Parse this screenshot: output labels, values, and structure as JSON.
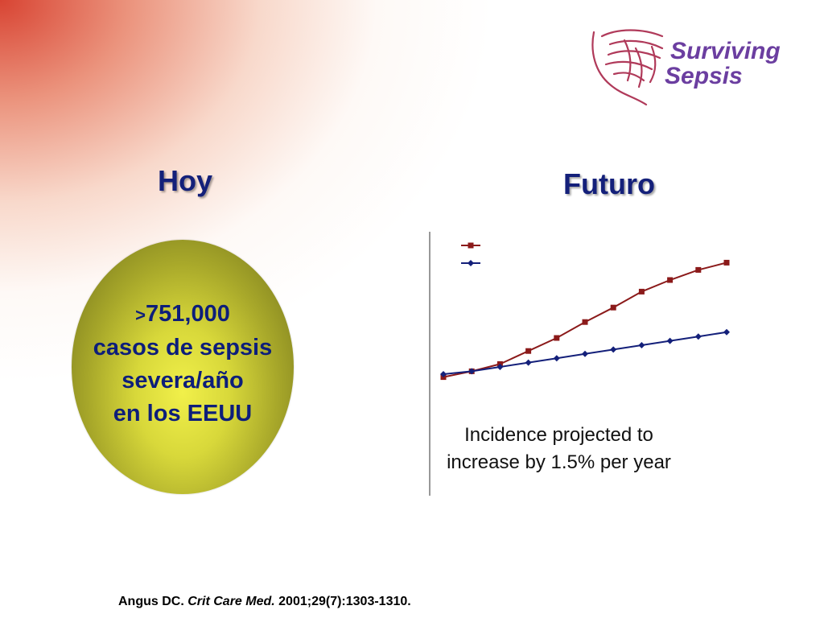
{
  "logo": {
    "line1": "Surviving",
    "line2": "Sepsis",
    "color": "#6b3ea0"
  },
  "left": {
    "heading": "Hoy",
    "ellipse": {
      "prefix": ">",
      "line1": "751,000",
      "line2": "casos de sepsis",
      "line3": "severa/año",
      "line4": "en los EEUU"
    }
  },
  "right": {
    "heading": "Futuro",
    "caption": {
      "line1": "Incidence projected to",
      "line2": "increase by 1.5% per year"
    }
  },
  "citation": {
    "author": "Angus DC.",
    "journal": "Crit Care Med.",
    "details": "2001;29(7):1303-1310."
  },
  "chart_data": {
    "type": "line",
    "title": "",
    "xlabel": "",
    "ylabel": "",
    "x": [
      1,
      2,
      3,
      4,
      5,
      6,
      7,
      8,
      9,
      10,
      11
    ],
    "ylim": [
      0,
      100
    ],
    "grid": false,
    "series": [
      {
        "marker": "square",
        "color": "#8b1a1a",
        "values": [
          8,
          12,
          17,
          26,
          35,
          46,
          56,
          67,
          75,
          82,
          87
        ]
      },
      {
        "marker": "diamond",
        "color": "#14207a",
        "values": [
          10,
          12,
          15,
          18,
          21,
          24,
          27,
          30,
          33,
          36,
          39
        ]
      }
    ]
  }
}
